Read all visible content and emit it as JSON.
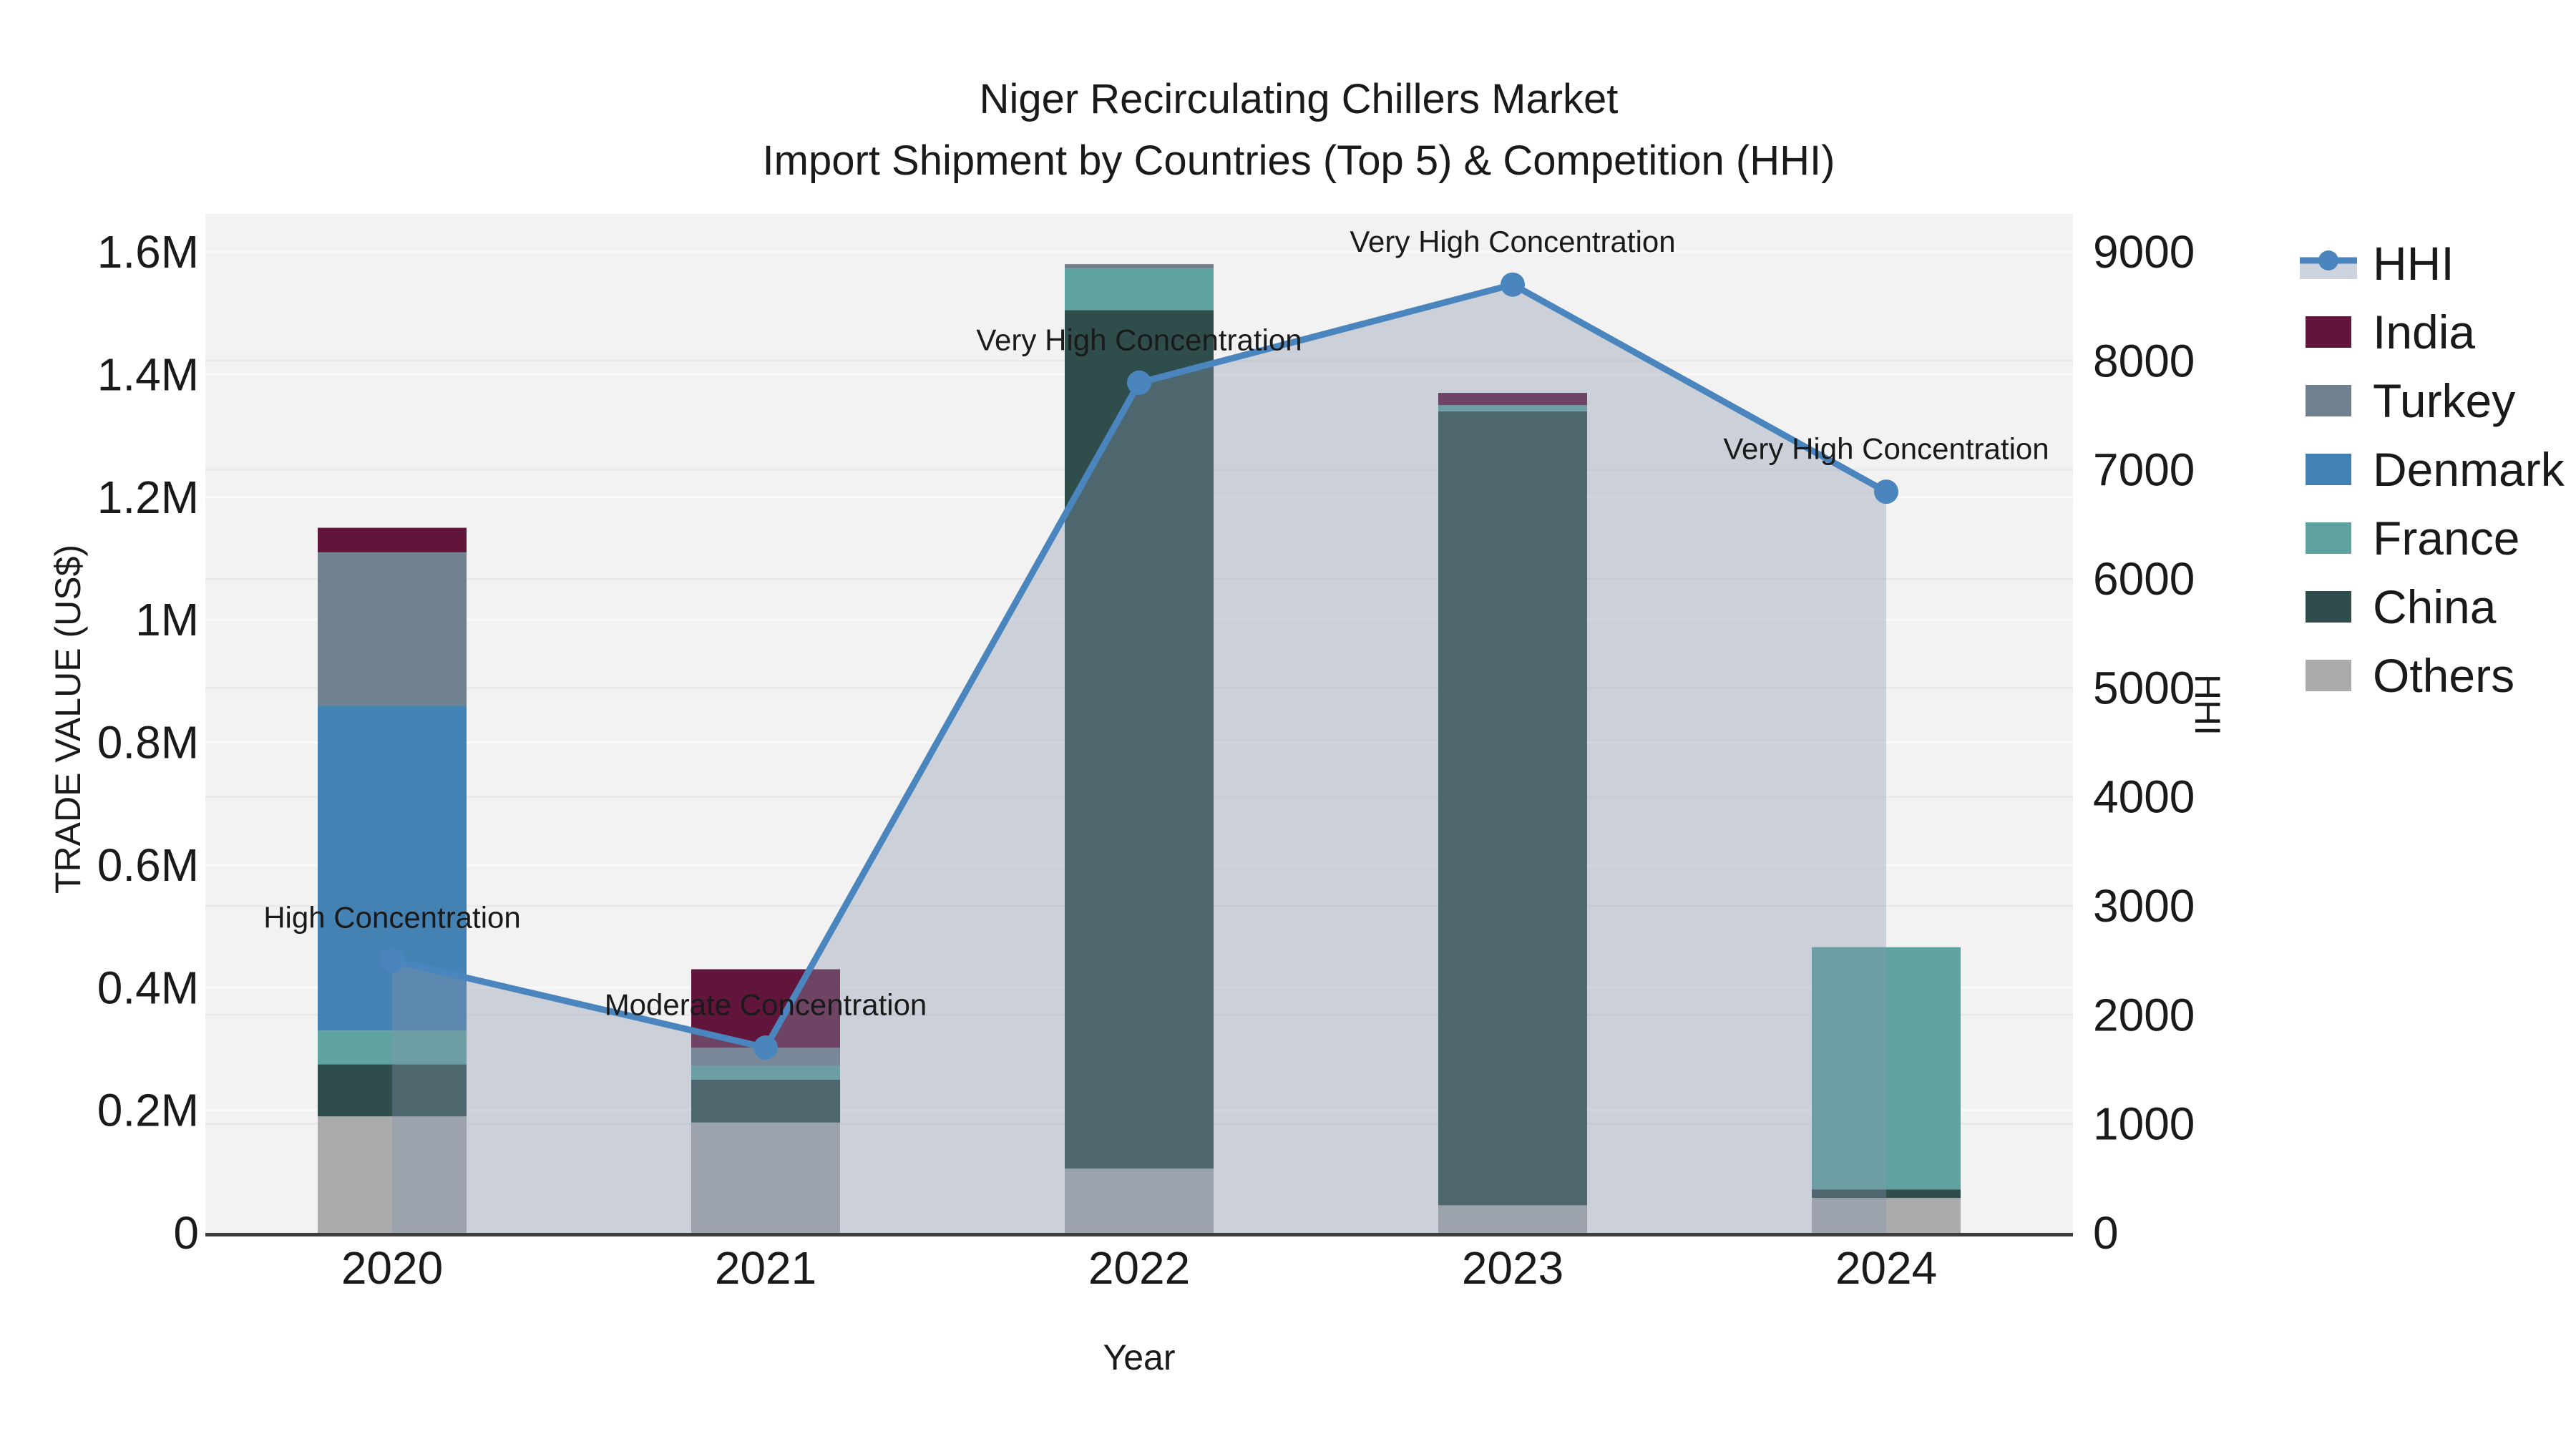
{
  "title": {
    "line1": "Niger Recirculating Chillers Market",
    "line2": "Import Shipment by Countries (Top 5) & Competition (HHI)"
  },
  "colors": {
    "text": "#1a1a1a",
    "plot_bg": "#f2f2f3",
    "gridline_usd": "#fafafb",
    "gridline_hhi": "#e7e8ea",
    "spine": "#3d3d3d",
    "hhi_line": "#4A85BE",
    "hhi_area": "rgba(136,150,172,0.36)",
    "hhi_area_solid": "#cdd4dd",
    "india": "#61153A",
    "turkey": "#71808F",
    "denmark": "#4582B4",
    "france": "#5FA3A0",
    "china": "#2E4D4B",
    "others": "#A9ABAD"
  },
  "chart_data": {
    "type": "bar+line",
    "title": "Niger Recirculating Chillers Market — Import Shipment by Countries (Top 5) & Competition (HHI)",
    "categories": [
      "2020",
      "2021",
      "2022",
      "2023",
      "2024"
    ],
    "bar_series": [
      {
        "name": "Others",
        "color": "others",
        "values": [
          190000,
          180000,
          105000,
          45000,
          57000
        ]
      },
      {
        "name": "China",
        "color": "china",
        "values": [
          85000,
          70000,
          1400000,
          1295000,
          14000
        ]
      },
      {
        "name": "France",
        "color": "france",
        "values": [
          55000,
          22000,
          68000,
          10000,
          395000
        ]
      },
      {
        "name": "Denmark",
        "color": "denmark",
        "values": [
          530000,
          0,
          0,
          0,
          0
        ]
      },
      {
        "name": "Turkey",
        "color": "turkey",
        "values": [
          250000,
          30000,
          7000,
          0,
          0
        ]
      },
      {
        "name": "India",
        "color": "india",
        "values": [
          40000,
          128000,
          0,
          20000,
          0
        ]
      }
    ],
    "bar_totals": [
      1150000,
      430000,
      1580000,
      1370000,
      466000
    ],
    "line_series": {
      "name": "HHI",
      "values": [
        2500,
        1700,
        7800,
        8700,
        6800
      ]
    },
    "annotations": [
      "High Concentration",
      "Moderate Concentration",
      "Very High Concentration",
      "Very High Concentration",
      "Very High Concentration"
    ],
    "left_axis": {
      "label": "TRADE VALUE (US$)",
      "tick_labels": [
        "0",
        "0.2M",
        "0.4M",
        "0.6M",
        "0.8M",
        "1M",
        "1.2M",
        "1.4M",
        "1.6M"
      ],
      "tick_values": [
        0,
        200000,
        400000,
        600000,
        800000,
        1000000,
        1200000,
        1400000,
        1600000
      ],
      "max_value": 1600000
    },
    "right_axis": {
      "label": "HHI",
      "tick_labels": [
        "0",
        "1000",
        "2000",
        "3000",
        "4000",
        "5000",
        "6000",
        "7000",
        "8000",
        "9000"
      ],
      "tick_values": [
        0,
        1000,
        2000,
        3000,
        4000,
        5000,
        6000,
        7000,
        8000,
        9000
      ],
      "max_value": 9000
    },
    "x_axis": {
      "label": "Year"
    },
    "legend": [
      {
        "label": "HHI",
        "swatch": "line"
      },
      {
        "label": "India",
        "swatch": "india"
      },
      {
        "label": "Turkey",
        "swatch": "turkey"
      },
      {
        "label": "Denmark",
        "swatch": "denmark"
      },
      {
        "label": "France",
        "swatch": "france"
      },
      {
        "label": "China",
        "swatch": "china"
      },
      {
        "label": "Others",
        "swatch": "others"
      }
    ],
    "grid": true,
    "legend_position": "right-top-outside"
  }
}
